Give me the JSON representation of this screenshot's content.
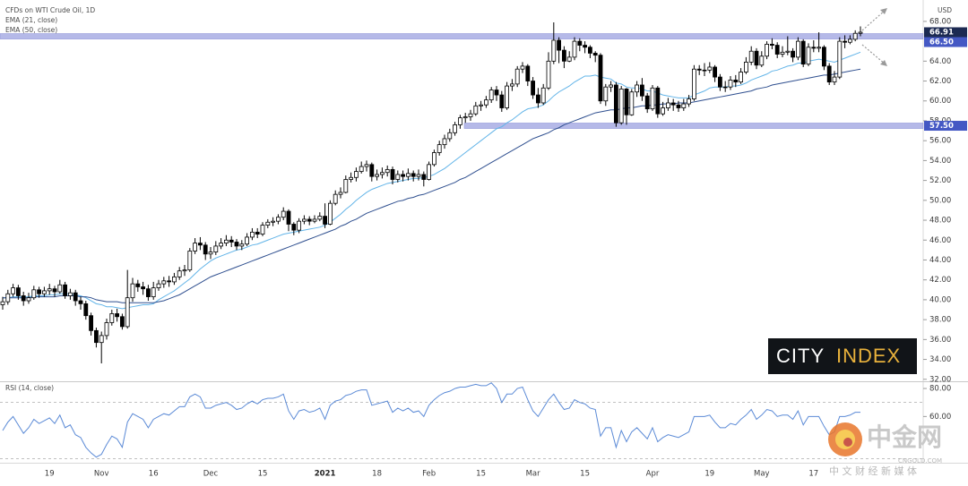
{
  "chart_data": {
    "type": "candlestick",
    "title": "CFDs on WTI Crude Oil, 1D",
    "unit": "USD",
    "categories": [
      null,
      null,
      null,
      null,
      null,
      null,
      null,
      null,
      null,
      "19",
      null,
      null,
      null,
      null,
      null,
      null,
      null,
      null,
      null,
      "Nov",
      null,
      null,
      null,
      null,
      null,
      null,
      null,
      null,
      null,
      "16",
      null,
      null,
      null,
      null,
      null,
      null,
      null,
      null,
      null,
      null,
      "Dec",
      null,
      null,
      null,
      null,
      null,
      null,
      null,
      null,
      null,
      "15",
      null,
      null,
      null,
      null,
      null,
      null,
      null,
      null,
      null,
      null,
      null,
      "2021",
      null,
      null,
      null,
      null,
      null,
      null,
      null,
      null,
      null,
      "18",
      null,
      null,
      null,
      null,
      null,
      null,
      null,
      null,
      null,
      "Feb",
      null,
      null,
      null,
      null,
      null,
      null,
      null,
      null,
      null,
      "15",
      null,
      null,
      null,
      null,
      null,
      null,
      null,
      null,
      null,
      "Mar",
      null,
      null,
      null,
      null,
      null,
      null,
      null,
      null,
      null,
      "15",
      null,
      null,
      null,
      null,
      null,
      null,
      null,
      null,
      null,
      null,
      null,
      null,
      "Apr",
      null,
      null,
      null,
      null,
      null,
      null,
      null,
      null,
      null,
      null,
      "19",
      null,
      null,
      null,
      null,
      null,
      null,
      null,
      null,
      null,
      "May",
      null,
      null,
      null,
      null,
      null,
      null,
      null,
      null,
      null,
      "17",
      null,
      null,
      null,
      null,
      null,
      null,
      null,
      null,
      null
    ],
    "open": [
      39.5,
      39.8,
      40.6,
      41.2,
      40.4,
      39.9,
      40.2,
      41.0,
      40.6,
      40.9,
      41.1,
      40.8,
      41.5,
      40.4,
      40.7,
      39.9,
      39.6,
      38.4,
      36.9,
      35.7,
      36.4,
      37.7,
      38.6,
      38.3,
      37.3,
      40.2,
      41.6,
      41.3,
      41.1,
      40.3,
      41.2,
      41.6,
      41.9,
      41.8,
      42.3,
      42.9,
      43.0,
      44.9,
      45.7,
      45.5,
      44.6,
      44.8,
      45.4,
      45.7,
      46.0,
      45.8,
      45.4,
      45.6,
      46.3,
      46.8,
      46.6,
      47.5,
      47.8,
      47.9,
      48.3,
      48.9,
      47.6,
      47.0,
      47.9,
      48.1,
      47.9,
      48.1,
      48.4,
      47.6,
      49.7,
      50.6,
      50.8,
      52.1,
      52.3,
      52.9,
      53.4,
      53.6,
      52.4,
      52.6,
      52.8,
      53.1,
      52.1,
      52.6,
      52.4,
      52.7,
      52.4,
      52.6,
      52.1,
      53.6,
      54.8,
      55.6,
      56.2,
      56.8,
      57.6,
      58.3,
      58.4,
      58.7,
      59.5,
      59.6,
      60.1,
      61.1,
      60.6,
      59.3,
      61.5,
      61.7,
      63.2,
      63.5,
      62.0,
      60.6,
      59.8,
      61.3,
      64.0,
      66.1,
      65.1,
      64.0,
      64.4,
      66.0,
      65.6,
      65.4,
      64.8,
      64.6,
      60.0,
      61.4,
      61.6,
      57.8,
      61.2,
      58.6,
      60.9,
      61.6,
      60.5,
      59.2,
      61.3,
      58.7,
      59.3,
      59.8,
      59.6,
      59.3,
      59.7,
      60.2,
      63.2,
      63.1,
      63.1,
      63.4,
      62.4,
      61.4,
      61.4,
      62.1,
      61.9,
      62.9,
      63.9,
      65.0,
      63.6,
      64.5,
      65.7,
      65.6,
      64.7,
      64.9,
      65.0,
      64.4,
      66.0,
      63.7,
      65.4,
      65.3,
      65.4,
      63.5,
      61.9,
      62.4,
      66.0,
      65.9,
      66.2,
      66.8
    ],
    "high": [
      40.3,
      41.0,
      41.6,
      41.5,
      40.8,
      40.7,
      41.4,
      41.3,
      41.3,
      41.6,
      41.4,
      42.0,
      41.8,
      41.1,
      41.0,
      40.3,
      39.9,
      38.7,
      37.2,
      36.8,
      38.1,
      39.0,
      39.1,
      38.6,
      43.0,
      42.2,
      42.0,
      41.8,
      41.5,
      41.8,
      42.0,
      42.3,
      42.4,
      42.7,
      43.3,
      43.5,
      45.2,
      46.2,
      46.3,
      45.8,
      45.3,
      45.9,
      46.2,
      46.5,
      46.4,
      46.1,
      46.0,
      46.7,
      47.2,
      47.2,
      47.8,
      48.1,
      48.3,
      48.6,
      49.3,
      49.1,
      47.8,
      48.2,
      48.5,
      48.4,
      48.5,
      48.8,
      49.7,
      50.0,
      51.0,
      51.3,
      52.5,
      52.8,
      53.3,
      53.9,
      54.0,
      53.8,
      53.1,
      53.3,
      53.5,
      53.4,
      53.0,
      53.0,
      53.2,
      53.0,
      53.1,
      52.9,
      53.9,
      55.1,
      56.0,
      56.6,
      57.2,
      57.9,
      58.6,
      58.8,
      59.1,
      59.9,
      60.0,
      60.5,
      61.4,
      61.5,
      61.0,
      61.9,
      62.2,
      63.5,
      63.9,
      63.7,
      62.4,
      61.3,
      61.7,
      64.9,
      67.9,
      66.4,
      65.5,
      65.0,
      66.4,
      66.3,
      66.0,
      65.6,
      65.0,
      64.8,
      61.7,
      62.0,
      61.9,
      61.5,
      61.3,
      61.2,
      62.0,
      62.3,
      60.8,
      61.6,
      61.5,
      59.9,
      60.3,
      60.2,
      60.0,
      60.2,
      60.6,
      63.6,
      63.6,
      63.8,
      63.9,
      63.6,
      62.7,
      62.0,
      62.5,
      62.6,
      63.3,
      64.4,
      65.5,
      65.3,
      65.0,
      66.0,
      66.3,
      65.9,
      65.5,
      66.5,
      65.3,
      66.4,
      66.2,
      65.8,
      66.1,
      66.9,
      65.6,
      63.8,
      63.0,
      66.4,
      66.6,
      66.6,
      67.1,
      67.5
    ],
    "low": [
      39.0,
      39.5,
      40.3,
      40.0,
      39.4,
      39.6,
      40.0,
      40.2,
      40.3,
      40.5,
      40.3,
      40.6,
      40.1,
      40.0,
      39.4,
      39.0,
      38.0,
      36.4,
      35.2,
      33.6,
      36.0,
      37.4,
      37.8,
      37.0,
      37.1,
      39.8,
      40.8,
      40.5,
      39.9,
      40.0,
      40.9,
      41.2,
      41.3,
      41.5,
      42.0,
      42.4,
      42.8,
      44.6,
      45.0,
      44.0,
      44.1,
      44.5,
      45.1,
      45.4,
      45.3,
      45.0,
      45.0,
      45.4,
      46.0,
      46.2,
      46.4,
      47.2,
      47.4,
      47.6,
      48.0,
      46.9,
      46.5,
      46.7,
      47.6,
      47.5,
      47.7,
      47.9,
      47.2,
      47.5,
      49.5,
      50.2,
      50.7,
      51.8,
      51.9,
      52.7,
      52.9,
      51.9,
      52.0,
      52.2,
      52.4,
      51.6,
      51.8,
      51.9,
      52.0,
      51.9,
      52.0,
      51.4,
      52.0,
      53.4,
      54.5,
      55.2,
      55.9,
      56.5,
      57.2,
      57.8,
      58.0,
      58.5,
      59.0,
      59.3,
      59.8,
      60.0,
      58.9,
      59.1,
      61.0,
      61.4,
      62.8,
      61.5,
      60.2,
      59.3,
      59.6,
      61.1,
      63.7,
      63.8,
      63.3,
      63.9,
      64.1,
      65.0,
      64.8,
      64.3,
      63.9,
      59.7,
      59.5,
      60.9,
      57.4,
      57.6,
      57.6,
      58.5,
      60.4,
      60.0,
      58.8,
      59.0,
      58.3,
      58.5,
      59.0,
      59.0,
      58.9,
      59.0,
      59.4,
      60.0,
      62.6,
      62.5,
      62.8,
      61.9,
      61.0,
      60.9,
      61.1,
      61.4,
      61.7,
      62.7,
      63.6,
      63.2,
      63.4,
      64.2,
      65.2,
      64.3,
      64.4,
      64.6,
      63.9,
      64.1,
      63.4,
      63.5,
      64.9,
      64.9,
      63.1,
      61.6,
      61.6,
      62.2,
      65.3,
      65.7,
      66.0,
      66.5
    ],
    "close": [
      39.8,
      40.6,
      41.2,
      40.4,
      39.9,
      40.2,
      41.0,
      40.6,
      40.9,
      41.1,
      40.8,
      41.5,
      40.4,
      40.7,
      39.9,
      39.6,
      38.4,
      36.9,
      35.7,
      36.4,
      37.7,
      38.6,
      38.3,
      37.3,
      40.2,
      41.6,
      41.3,
      41.1,
      40.3,
      41.2,
      41.6,
      41.9,
      41.8,
      42.3,
      42.9,
      43.0,
      44.9,
      45.7,
      45.5,
      44.6,
      44.8,
      45.4,
      45.7,
      46.0,
      45.8,
      45.4,
      45.6,
      46.3,
      46.8,
      46.6,
      47.5,
      47.8,
      47.9,
      48.3,
      48.9,
      47.6,
      47.0,
      47.9,
      48.1,
      47.9,
      48.1,
      48.4,
      47.6,
      49.7,
      50.6,
      50.8,
      52.1,
      52.3,
      52.9,
      53.4,
      53.6,
      52.4,
      52.6,
      52.8,
      53.1,
      52.1,
      52.6,
      52.4,
      52.7,
      52.4,
      52.6,
      52.1,
      53.6,
      54.8,
      55.6,
      56.2,
      56.8,
      57.6,
      58.3,
      58.4,
      58.7,
      59.5,
      59.6,
      60.1,
      61.1,
      60.6,
      59.3,
      61.5,
      61.7,
      63.2,
      63.5,
      62.0,
      60.6,
      59.8,
      61.3,
      64.0,
      66.1,
      65.1,
      64.0,
      64.4,
      66.0,
      65.6,
      65.4,
      64.8,
      64.6,
      60.0,
      61.4,
      61.6,
      57.8,
      61.2,
      58.6,
      60.9,
      61.6,
      60.5,
      59.2,
      61.3,
      58.7,
      59.3,
      59.8,
      59.6,
      59.3,
      59.7,
      60.2,
      63.2,
      63.1,
      63.1,
      63.4,
      62.4,
      61.4,
      61.4,
      62.1,
      61.9,
      62.9,
      63.9,
      65.0,
      63.6,
      64.5,
      65.7,
      65.6,
      64.7,
      64.9,
      65.0,
      64.4,
      66.0,
      63.7,
      65.4,
      65.3,
      65.4,
      63.5,
      61.9,
      62.4,
      66.0,
      65.9,
      66.2,
      66.8,
      66.91
    ],
    "up_color": "#ffffff",
    "down_color": "#000000",
    "last_price_color": "#1c2a52",
    "series": [
      {
        "name": "EMA (21, close)",
        "color": "#62b4e8",
        "values": [
          40.2,
          40.2,
          40.3,
          40.3,
          40.3,
          40.3,
          40.4,
          40.4,
          40.4,
          40.5,
          40.5,
          40.6,
          40.6,
          40.6,
          40.5,
          40.4,
          40.2,
          39.9,
          39.6,
          39.5,
          39.3,
          39.3,
          39.2,
          39.1,
          39.2,
          39.3,
          39.4,
          39.5,
          39.5,
          39.6,
          40.0,
          40.3,
          40.6,
          40.9,
          41.3,
          41.7,
          42.1,
          42.6,
          43.1,
          43.5,
          43.9,
          44.2,
          44.4,
          44.6,
          44.8,
          45.0,
          45.1,
          45.3,
          45.5,
          45.6,
          45.8,
          46.0,
          46.2,
          46.4,
          46.6,
          46.7,
          46.8,
          46.9,
          47.0,
          47.1,
          47.2,
          47.3,
          47.5,
          47.8,
          48.2,
          48.6,
          49.1,
          49.5,
          50.0,
          50.4,
          50.8,
          51.1,
          51.3,
          51.5,
          51.7,
          51.8,
          51.9,
          52.0,
          52.1,
          52.2,
          52.2,
          52.3,
          52.4,
          52.6,
          52.9,
          53.2,
          53.6,
          54.0,
          54.4,
          54.8,
          55.2,
          55.6,
          56.0,
          56.4,
          56.8,
          57.2,
          57.4,
          57.8,
          58.1,
          58.5,
          58.9,
          59.2,
          59.3,
          59.4,
          59.6,
          60.0,
          60.5,
          60.9,
          61.2,
          61.5,
          61.9,
          62.2,
          62.5,
          62.5,
          62.6,
          62.4,
          62.3,
          62.2,
          61.8,
          61.7,
          61.4,
          61.3,
          61.3,
          61.2,
          61.0,
          61.0,
          60.8,
          60.6,
          60.5,
          60.4,
          60.3,
          60.3,
          60.3,
          60.6,
          60.8,
          61.0,
          61.3,
          61.4,
          61.4,
          61.4,
          61.5,
          61.5,
          61.6,
          61.8,
          62.1,
          62.3,
          62.5,
          62.7,
          63.0,
          63.1,
          63.3,
          63.5,
          63.6,
          63.8,
          63.8,
          64.0,
          64.1,
          64.2,
          64.1,
          64.0,
          63.9,
          64.1,
          64.3,
          64.5,
          64.7,
          64.9
        ]
      },
      {
        "name": "EMA (50, close)",
        "color": "#2f4f8f",
        "values": [
          40.2,
          40.2,
          40.2,
          40.2,
          40.2,
          40.2,
          40.3,
          40.3,
          40.3,
          40.3,
          40.3,
          40.4,
          40.4,
          40.4,
          40.4,
          40.3,
          40.3,
          40.2,
          40.0,
          39.9,
          39.8,
          39.8,
          39.8,
          39.7,
          39.7,
          39.7,
          39.7,
          39.7,
          39.7,
          39.7,
          39.8,
          39.9,
          40.1,
          40.3,
          40.5,
          40.8,
          41.1,
          41.4,
          41.7,
          42.0,
          42.3,
          42.5,
          42.7,
          42.9,
          43.1,
          43.3,
          43.5,
          43.7,
          43.9,
          44.1,
          44.3,
          44.5,
          44.7,
          44.9,
          45.1,
          45.3,
          45.5,
          45.7,
          45.9,
          46.1,
          46.3,
          46.5,
          46.7,
          46.9,
          47.1,
          47.4,
          47.6,
          47.9,
          48.1,
          48.4,
          48.7,
          48.9,
          49.1,
          49.3,
          49.5,
          49.7,
          49.9,
          50.0,
          50.2,
          50.3,
          50.5,
          50.6,
          50.8,
          51.0,
          51.2,
          51.4,
          51.6,
          51.8,
          52.1,
          52.3,
          52.6,
          52.9,
          53.2,
          53.5,
          53.8,
          54.1,
          54.4,
          54.7,
          55.0,
          55.3,
          55.6,
          55.9,
          56.2,
          56.4,
          56.6,
          56.8,
          57.1,
          57.3,
          57.6,
          57.8,
          58.0,
          58.2,
          58.4,
          58.6,
          58.8,
          58.9,
          59.0,
          59.1,
          59.1,
          59.2,
          59.3,
          59.3,
          59.4,
          59.5,
          59.5,
          59.6,
          59.6,
          59.7,
          59.7,
          59.7,
          59.8,
          59.8,
          59.8,
          59.9,
          60.0,
          60.1,
          60.2,
          60.3,
          60.4,
          60.5,
          60.6,
          60.7,
          60.8,
          60.9,
          61.0,
          61.2,
          61.3,
          61.4,
          61.6,
          61.7,
          61.8,
          61.9,
          62.0,
          62.1,
          62.2,
          62.3,
          62.4,
          62.5,
          62.6,
          62.6,
          62.7,
          62.8,
          62.9,
          63.0,
          63.1,
          63.2
        ]
      }
    ],
    "ylim": [
      31.8,
      69.7
    ],
    "yticks": [
      {
        "value": 68,
        "label": "68.00"
      },
      {
        "value": 64,
        "label": "64.00"
      },
      {
        "value": 62,
        "label": "62.00"
      },
      {
        "value": 60,
        "label": "60.00"
      },
      {
        "value": 58,
        "label": "58.00"
      },
      {
        "value": 56,
        "label": "56.00"
      },
      {
        "value": 54,
        "label": "54.00"
      },
      {
        "value": 52,
        "label": "52.00"
      },
      {
        "value": 50,
        "label": "50.00"
      },
      {
        "value": 48,
        "label": "48.00"
      },
      {
        "value": 46,
        "label": "46.00"
      },
      {
        "value": 44,
        "label": "44.00"
      },
      {
        "value": 42,
        "label": "42.00"
      },
      {
        "value": 40,
        "label": "40.00"
      },
      {
        "value": 38,
        "label": "38.00"
      },
      {
        "value": 36,
        "label": "36.00"
      },
      {
        "value": 34,
        "label": "34.00"
      },
      {
        "value": 32,
        "label": "32.00"
      }
    ],
    "levels": [
      {
        "value": 66.5,
        "label": "66.50"
      },
      {
        "value": 57.5,
        "label": "57.50"
      }
    ],
    "level_color": "#b5b9e8",
    "level_label_color": "#4458c4",
    "rsi": {
      "name": "RSI (14, close)",
      "color": "#5b8ad6",
      "values": [
        50,
        56,
        60,
        54,
        48,
        52,
        58,
        55,
        57,
        59,
        55,
        61,
        52,
        54,
        47,
        45,
        38,
        34,
        31,
        33,
        40,
        46,
        44,
        38,
        56,
        62,
        60,
        58,
        52,
        58,
        60,
        62,
        61,
        64,
        67,
        67,
        74,
        76,
        74,
        66,
        66,
        68,
        69,
        70,
        68,
        65,
        66,
        69,
        71,
        69,
        72,
        73,
        73,
        74,
        76,
        64,
        58,
        64,
        65,
        63,
        64,
        66,
        58,
        68,
        71,
        72,
        75,
        76,
        78,
        79,
        79,
        68,
        69,
        70,
        71,
        63,
        66,
        64,
        66,
        63,
        64,
        60,
        68,
        72,
        75,
        77,
        78,
        80,
        81,
        81,
        82,
        83,
        82,
        82,
        84,
        80,
        70,
        76,
        76,
        80,
        81,
        72,
        64,
        60,
        66,
        72,
        76,
        70,
        65,
        66,
        72,
        70,
        69,
        66,
        65,
        46,
        52,
        52,
        38,
        50,
        42,
        49,
        52,
        48,
        44,
        52,
        42,
        45,
        47,
        46,
        45,
        47,
        49,
        60,
        60,
        60,
        61,
        56,
        52,
        52,
        55,
        54,
        58,
        61,
        65,
        58,
        61,
        65,
        64,
        60,
        61,
        61,
        58,
        64,
        54,
        60,
        60,
        60,
        53,
        47,
        49,
        60,
        60,
        61,
        63,
        63
      ],
      "ylim": [
        27,
        84.5
      ],
      "yticks": [
        {
          "value": 80,
          "label": "80.00"
        },
        {
          "value": 60,
          "label": "60.00"
        }
      ],
      "levels": [
        70,
        30
      ]
    }
  },
  "logo": {
    "left": "CITY",
    "right": "INDEX"
  },
  "watermark": {
    "brand": "中金网",
    "site": "CNGOLD.COM",
    "slogan": "中 文 财 经 新 媒 体"
  }
}
